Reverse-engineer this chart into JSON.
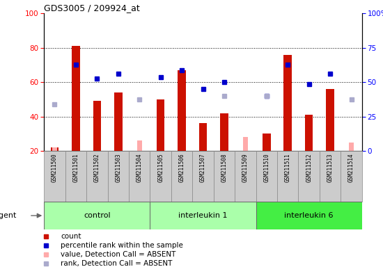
{
  "title": "GDS3005 / 209924_at",
  "samples": [
    "GSM211500",
    "GSM211501",
    "GSM211502",
    "GSM211503",
    "GSM211504",
    "GSM211505",
    "GSM211506",
    "GSM211507",
    "GSM211508",
    "GSM211509",
    "GSM211510",
    "GSM211511",
    "GSM211512",
    "GSM211513",
    "GSM211514"
  ],
  "groups": [
    {
      "label": "control",
      "start": 0,
      "end": 4,
      "color": "#aaffaa"
    },
    {
      "label": "interleukin 1",
      "start": 5,
      "end": 9,
      "color": "#aaffaa"
    },
    {
      "label": "interleukin 6",
      "start": 10,
      "end": 14,
      "color": "#44ee44"
    }
  ],
  "red_bars": [
    22,
    81,
    49,
    54,
    null,
    50,
    67,
    36,
    42,
    null,
    30,
    76,
    41,
    56,
    null
  ],
  "pink_bars": [
    22,
    null,
    null,
    null,
    26,
    null,
    null,
    null,
    null,
    28,
    null,
    null,
    null,
    null,
    25
  ],
  "blue_squares": [
    null,
    70,
    62,
    65,
    null,
    63,
    67,
    56,
    60,
    null,
    52,
    70,
    59,
    65,
    null
  ],
  "lavender_squares": [
    47,
    null,
    null,
    null,
    50,
    null,
    null,
    null,
    52,
    null,
    52,
    null,
    null,
    null,
    50
  ],
  "ylim_left": [
    20,
    100
  ],
  "yticks_left": [
    20,
    40,
    60,
    80,
    100
  ],
  "yticks_right": [
    0,
    25,
    50,
    75,
    100
  ],
  "ytick_labels_right": [
    "0",
    "25",
    "50",
    "75",
    "100%"
  ],
  "red_color": "#cc1100",
  "pink_color": "#ffaaaa",
  "blue_color": "#0000cc",
  "lavender_color": "#aaaacc",
  "legend_labels": [
    "count",
    "percentile rank within the sample",
    "value, Detection Call = ABSENT",
    "rank, Detection Call = ABSENT"
  ],
  "legend_colors": [
    "#cc1100",
    "#0000cc",
    "#ffaaaa",
    "#aaaacc"
  ]
}
